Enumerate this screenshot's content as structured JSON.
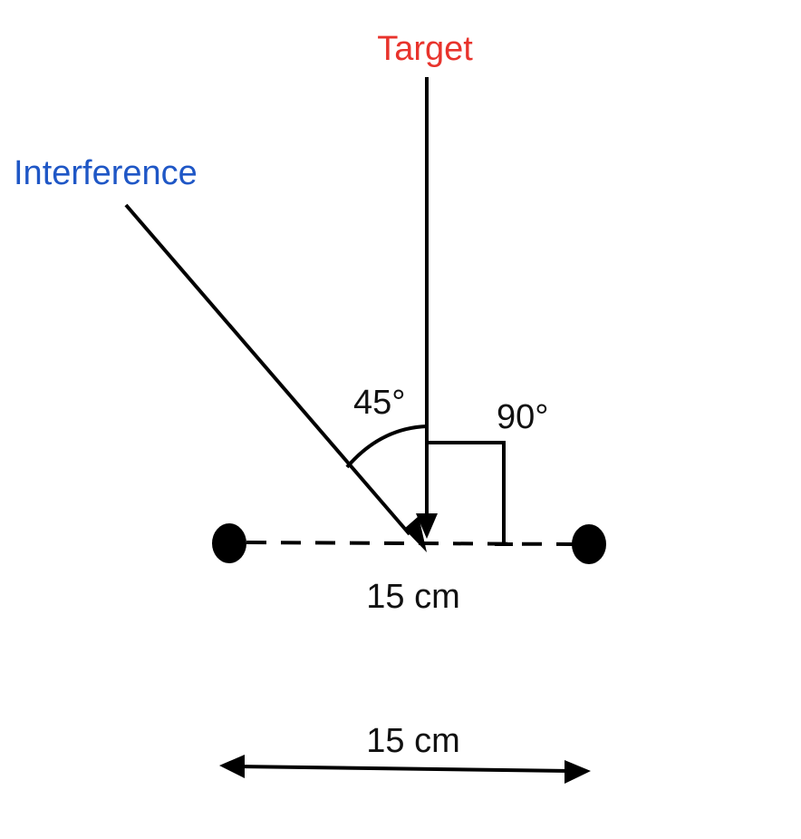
{
  "labels": {
    "target": "Target",
    "interference": "Interference",
    "angle_interference": "45°",
    "angle_target": "90°",
    "mic_spacing": "15 cm",
    "scale_bar": "15 cm"
  },
  "colors": {
    "target": "#e8332c",
    "interference": "#1f57c6",
    "line": "#000000",
    "text": "#111111"
  }
}
